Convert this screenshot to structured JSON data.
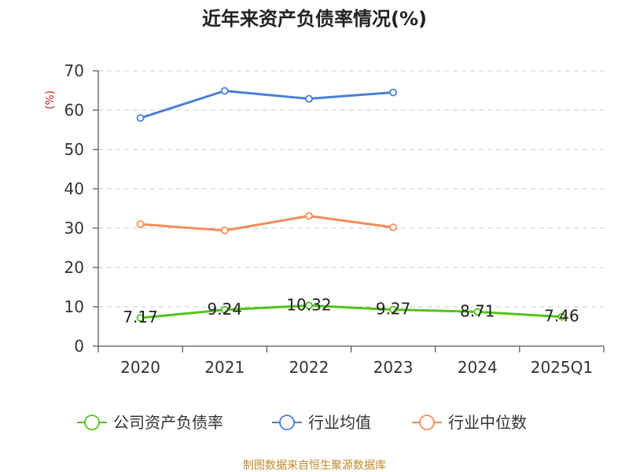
{
  "chart_data": {
    "type": "line",
    "title": "近年来资产负债率情况(%)",
    "unit_label": "(%)",
    "categories": [
      "2020",
      "2021",
      "2022",
      "2023",
      "2024",
      "2025Q1"
    ],
    "ylim": [
      0,
      70
    ],
    "yticks": [
      0,
      10,
      20,
      30,
      40,
      50,
      60,
      70
    ],
    "grid": true,
    "legend_position": "bottom",
    "series": [
      {
        "name": "公司资产负债率",
        "color": "#52c41a",
        "values": [
          7.17,
          9.24,
          10.32,
          9.27,
          8.71,
          7.46
        ],
        "labels": [
          "7.17",
          "9.24",
          "10.32",
          "9.27",
          "8.71",
          "7.46"
        ]
      },
      {
        "name": "行业均值",
        "color": "#4a7fd6",
        "values": [
          58.0,
          64.9,
          62.9,
          64.5,
          null,
          null
        ]
      },
      {
        "name": "行业中位数",
        "color": "#f28c5c",
        "values": [
          31.0,
          29.4,
          33.1,
          30.2,
          null,
          null
        ]
      }
    ]
  },
  "source_text": "制图数据来自恒生聚源数据库"
}
